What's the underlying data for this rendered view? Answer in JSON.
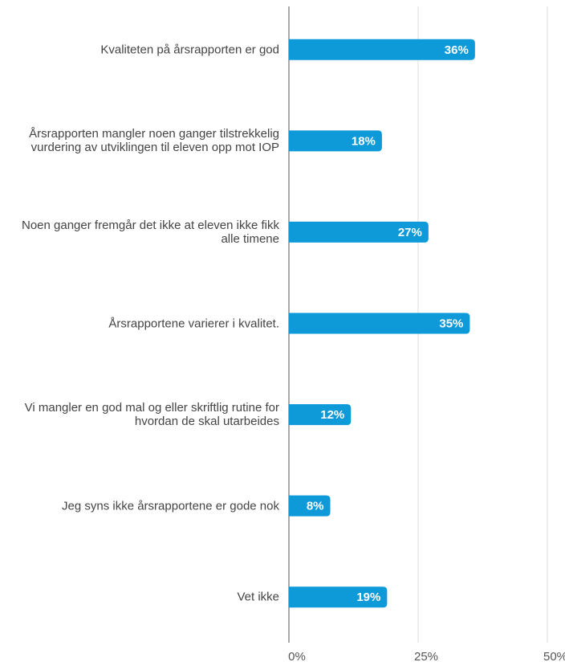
{
  "chart_data": {
    "type": "bar",
    "orientation": "horizontal",
    "categories": [
      "Kvaliteten på årsrapporten er god",
      "Årsrapporten mangler noen ganger tilstrekkelig vurdering av utviklingen til eleven opp mot IOP",
      "Noen ganger fremgår det ikke at eleven ikke fikk alle timene",
      "Årsrapportene varierer i kvalitet.",
      "Vi mangler en god mal og eller skriftlig rutine for hvordan de skal utarbeides",
      "Jeg syns ikke årsrapportene er gode nok",
      "Vet ikke"
    ],
    "values": [
      36,
      18,
      27,
      35,
      12,
      8,
      19
    ],
    "value_labels": [
      "36%",
      "18%",
      "27%",
      "35%",
      "12%",
      "8%",
      "19%"
    ],
    "color": "#0e9ad9",
    "xlim": [
      0,
      50
    ],
    "xticks": [
      {
        "value": 0,
        "label": "0%"
      },
      {
        "value": 25,
        "label": "25%"
      },
      {
        "value": 50,
        "label": "50%"
      }
    ],
    "grid": true
  }
}
